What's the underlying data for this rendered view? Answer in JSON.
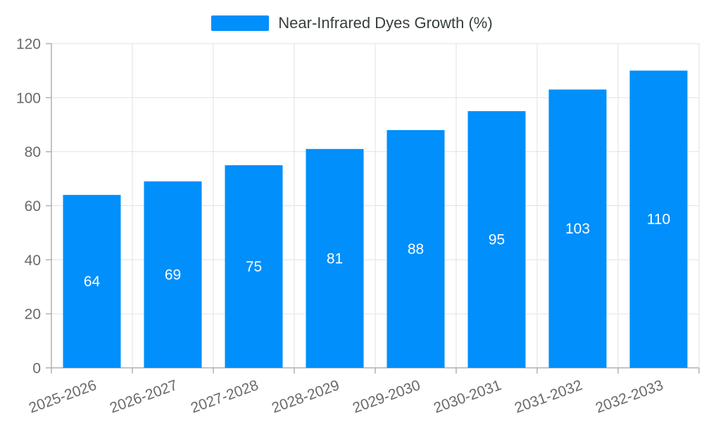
{
  "legend": {
    "label": "Near-Infrared Dyes Growth (%)",
    "swatch_color": "#008FFB"
  },
  "chart_data": {
    "type": "bar",
    "title": "",
    "xlabel": "",
    "ylabel": "",
    "categories": [
      "2025-2026",
      "2026-2027",
      "2027-2028",
      "2028-2029",
      "2029-2030",
      "2030-2031",
      "2031-2032",
      "2032-2033"
    ],
    "series": [
      {
        "name": "Near-Infrared Dyes Growth (%)",
        "values": [
          64,
          69,
          75,
          81,
          88,
          95,
          103,
          110
        ]
      }
    ],
    "value_labels": [
      "64",
      "69",
      "75",
      "81",
      "88",
      "95",
      "103",
      "110"
    ],
    "ylim": [
      0,
      120
    ],
    "yticks": [
      0,
      20,
      40,
      60,
      80,
      100,
      120
    ],
    "grid": true,
    "legend_position": "top",
    "x_label_rotation_deg": -20,
    "colors": {
      "bar": "#008FFB",
      "value_label": "#ffffff",
      "gridline": "#e2e2e2",
      "axis_line": "#b1b1b1",
      "tick_mark": "#b1b1b1",
      "tick_label": "#696969",
      "legend_text": "#373d3f"
    }
  }
}
